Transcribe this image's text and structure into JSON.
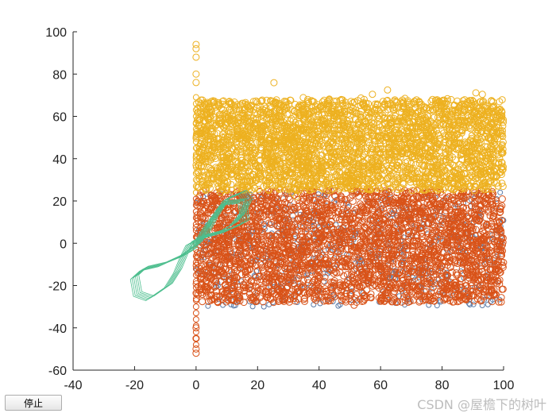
{
  "chart_data": {
    "type": "scatter",
    "title": "",
    "xlabel": "",
    "ylabel": "",
    "xlim": [
      -40,
      100
    ],
    "ylim": [
      -60,
      100
    ],
    "grid": false,
    "xticks": [
      "-40",
      "-20",
      "0",
      "20",
      "40",
      "60",
      "80",
      "100"
    ],
    "yticks": [
      "100",
      "80",
      "60",
      "40",
      "20",
      "0",
      "-20",
      "-40",
      "-60"
    ],
    "xtick_values": [
      -40,
      -20,
      0,
      20,
      40,
      60,
      80,
      100
    ],
    "ytick_values": [
      100,
      80,
      60,
      40,
      20,
      0,
      -20,
      -40,
      -60
    ],
    "series": [
      {
        "color": "#4a6d9e",
        "marker": "circle",
        "x_range": [
          0,
          100
        ],
        "y_range": [
          -30,
          25
        ],
        "note_visible": "mostly hidden behind other series, appears as specks near bottom"
      },
      {
        "color": "#d95319",
        "marker": "circle",
        "x_range": [
          0,
          100
        ],
        "y_range": [
          -38,
          30
        ],
        "dense_band": [
          -28,
          25
        ]
      },
      {
        "color": "#edb120",
        "marker": "circle",
        "x_range": [
          0,
          100
        ],
        "y_range": [
          14,
          79
        ],
        "dense_band": [
          25,
          68
        ]
      },
      {
        "color": "#4dbe8e",
        "marker": "line",
        "shape": "lorenz-attractor",
        "points": [
          [
            -8,
            -8
          ],
          [
            -3,
            -5
          ],
          [
            -1,
            -3
          ],
          [
            0,
            2
          ],
          [
            3,
            3
          ],
          [
            7,
            5
          ],
          [
            12,
            9
          ],
          [
            15,
            14
          ],
          [
            17,
            20
          ],
          [
            15,
            24
          ],
          [
            10,
            21
          ],
          [
            6,
            12
          ],
          [
            3,
            4
          ],
          [
            0,
            -1
          ],
          [
            -5,
            -6
          ],
          [
            -11,
            -10
          ],
          [
            -17,
            -12
          ],
          [
            -20,
            -16
          ],
          [
            -19,
            -24
          ],
          [
            -15,
            -26
          ],
          [
            -9,
            -20
          ],
          [
            -6,
            -13
          ],
          [
            -4,
            -6
          ],
          [
            -2,
            0
          ],
          [
            2,
            3
          ],
          [
            10,
            6
          ],
          [
            16,
            10
          ],
          [
            15,
            20
          ],
          [
            9,
            19
          ],
          [
            4,
            9
          ],
          [
            0,
            0
          ]
        ]
      }
    ],
    "outliers": [
      {
        "x": 0,
        "y": 94,
        "color": "#edb120"
      },
      {
        "x": 0,
        "y": 92,
        "color": "#edb120"
      },
      {
        "x": 0,
        "y": 88,
        "color": "#edb120"
      },
      {
        "x": 0,
        "y": 80,
        "color": "#edb120"
      },
      {
        "x": 0,
        "y": 76,
        "color": "#edb120"
      },
      {
        "x": 0,
        "y": -52,
        "color": "#d95319"
      },
      {
        "x": 0,
        "y": -50,
        "color": "#d95319"
      },
      {
        "x": 0,
        "y": -45,
        "color": "#d95319"
      },
      {
        "x": 0,
        "y": -40,
        "color": "#d95319"
      }
    ]
  },
  "controls": {
    "stop_label": "停止"
  },
  "watermark": {
    "text": "CSDN @屋檐下的树叶"
  }
}
